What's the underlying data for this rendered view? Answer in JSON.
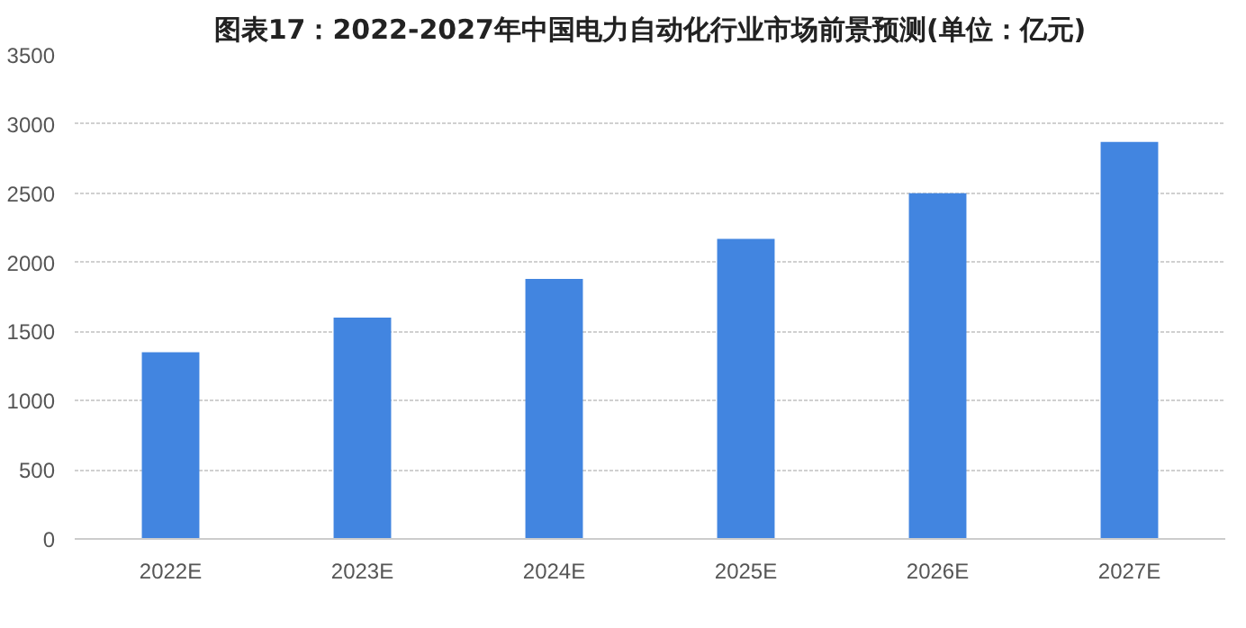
{
  "chart_data": {
    "type": "bar",
    "title": "图表17：2022-2027年中国电力自动化行业市场前景预测(单位：亿元)",
    "categories": [
      "2022E",
      "2023E",
      "2024E",
      "2025E",
      "2026E",
      "2027E"
    ],
    "values": [
      1350,
      1600,
      1880,
      2170,
      2500,
      2870
    ],
    "color": "#4285e0",
    "ylim": [
      0,
      3500
    ],
    "yticks": [
      0,
      500,
      1000,
      1500,
      2000,
      2500,
      3000,
      3500
    ],
    "grid": "y"
  }
}
